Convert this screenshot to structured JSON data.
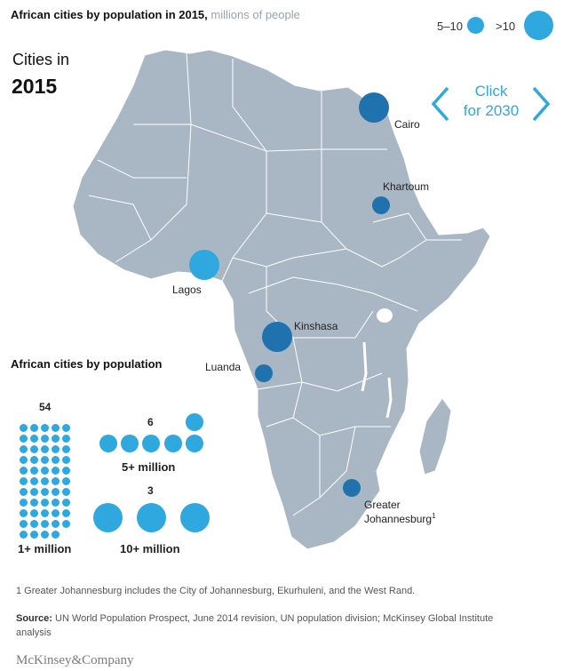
{
  "header": {
    "title": "African cities by population in 2015,",
    "subtitle": "millions of people"
  },
  "legend": {
    "small_label": "5–10",
    "large_label": ">10",
    "color": "#2fa8e0"
  },
  "year_block": {
    "line1": "Cities in",
    "year": "2015"
  },
  "click_control": {
    "line1": "Click",
    "line2": "for 2030",
    "color": "#2fa8e0"
  },
  "map": {
    "land_color": "#a9b7c4",
    "border_color": "#ffffff",
    "marker_color": "#1f72ad",
    "cities": [
      {
        "name": "Cairo",
        "size_class": ">10"
      },
      {
        "name": "Khartoum",
        "size_class": "5–10"
      },
      {
        "name": "Lagos",
        "size_class": ">10"
      },
      {
        "name": "Kinshasa",
        "size_class": ">10"
      },
      {
        "name": "Luanda",
        "size_class": "5–10"
      },
      {
        "name": "Greater",
        "name2": "Johannesburg",
        "footnote": "1",
        "size_class": "5–10"
      }
    ]
  },
  "panel": {
    "title": "African cities by population",
    "groups": [
      {
        "count": "54",
        "caption": "1+ million",
        "dots": 54
      },
      {
        "count": "6",
        "caption": "5+ million",
        "dots": 6
      },
      {
        "count": "3",
        "caption": "10+ million",
        "dots": 3
      }
    ]
  },
  "footnotes": {
    "note1": "1 Greater Johannesburg includes the City of Johannesburg, Ekurhuleni, and the West Rand.",
    "source_label": "Source:",
    "source_text": "UN World Population Prospect, June 2014 revision, UN population division; McKinsey Global Institute analysis"
  },
  "brand": "McKinsey&Company"
}
